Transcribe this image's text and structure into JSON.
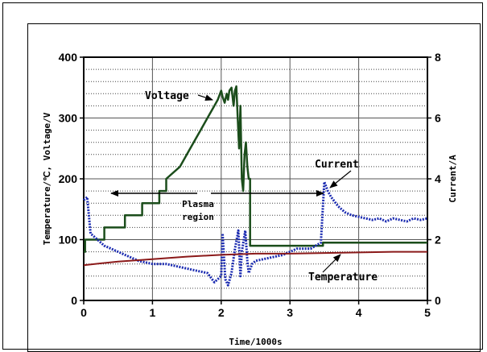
{
  "chart_data": {
    "type": "line",
    "xlabel": "Time/1000s",
    "ylabel_left": "Temperature/℃, Voltage/V",
    "ylabel_right": "Current/A",
    "xlim": [
      0,
      5
    ],
    "ylim_left": [
      0,
      400
    ],
    "ylim_right": [
      0,
      8
    ],
    "x_ticks": [
      "0",
      "1",
      "2",
      "3",
      "4",
      "5"
    ],
    "y_ticks_left": [
      "0",
      "100",
      "200",
      "300",
      "400"
    ],
    "y_ticks_right": [
      "0",
      "2",
      "4",
      "6",
      "8"
    ],
    "grid": true,
    "series": [
      {
        "name": "Voltage",
        "axis": "left",
        "color": "#1b4d1b",
        "x": [
          0,
          0.02,
          0.02,
          0.3,
          0.3,
          0.6,
          0.6,
          0.85,
          0.85,
          1.1,
          1.1,
          1.2,
          1.2,
          1.4,
          1.5,
          1.6,
          1.7,
          1.8,
          1.9,
          1.95,
          2.0,
          2.02,
          2.05,
          2.08,
          2.1,
          2.12,
          2.15,
          2.18,
          2.2,
          2.22,
          2.24,
          2.26,
          2.28,
          2.3,
          2.32,
          2.34,
          2.36,
          2.38,
          2.4,
          2.42,
          2.42,
          3.48,
          3.48,
          5.0
        ],
        "y": [
          80,
          80,
          100,
          100,
          120,
          120,
          140,
          140,
          160,
          160,
          180,
          180,
          200,
          220,
          240,
          260,
          280,
          300,
          320,
          330,
          345,
          335,
          325,
          340,
          330,
          345,
          350,
          320,
          345,
          352,
          300,
          250,
          320,
          200,
          180,
          240,
          260,
          220,
          200,
          200,
          90,
          90,
          95,
          95
        ]
      },
      {
        "name": "Current",
        "axis": "right",
        "color": "#1a2ab0",
        "x": [
          0,
          0.05,
          0.1,
          0.2,
          0.3,
          0.4,
          0.5,
          0.6,
          0.8,
          1.0,
          1.2,
          1.4,
          1.6,
          1.8,
          1.9,
          2.0,
          2.02,
          2.06,
          2.1,
          2.15,
          2.2,
          2.25,
          2.28,
          2.3,
          2.35,
          2.38,
          2.4,
          2.45,
          2.5,
          2.7,
          2.9,
          3.1,
          3.3,
          3.45,
          3.5,
          3.55,
          3.6,
          3.7,
          3.8,
          3.9,
          4.0,
          4.1,
          4.2,
          4.3,
          4.4,
          4.5,
          4.6,
          4.7,
          4.8,
          4.9,
          5.0
        ],
        "y": [
          3.3,
          3.4,
          2.2,
          2.0,
          1.8,
          1.7,
          1.6,
          1.5,
          1.3,
          1.2,
          1.2,
          1.1,
          1.0,
          0.9,
          0.6,
          0.8,
          2.2,
          0.7,
          0.5,
          0.9,
          1.7,
          2.3,
          0.8,
          1.6,
          2.3,
          1.3,
          0.9,
          1.2,
          1.3,
          1.4,
          1.5,
          1.7,
          1.7,
          1.9,
          3.9,
          3.6,
          3.4,
          3.1,
          2.9,
          2.8,
          2.75,
          2.7,
          2.65,
          2.7,
          2.6,
          2.7,
          2.65,
          2.6,
          2.7,
          2.65,
          2.7
        ]
      },
      {
        "name": "Temperature",
        "axis": "left",
        "color": "#8b1a1a",
        "x": [
          0,
          0.5,
          1.0,
          1.5,
          2.0,
          2.5,
          3.0,
          3.5,
          4.0,
          4.5,
          5.0
        ],
        "y": [
          58,
          64,
          68,
          72,
          75,
          77,
          77,
          78,
          79,
          80,
          80
        ]
      }
    ],
    "annotations": [
      {
        "text": "Voltage"
      },
      {
        "text": "Current"
      },
      {
        "text": "Plasma"
      },
      {
        "text": "region"
      },
      {
        "text": "Temperature"
      }
    ]
  }
}
